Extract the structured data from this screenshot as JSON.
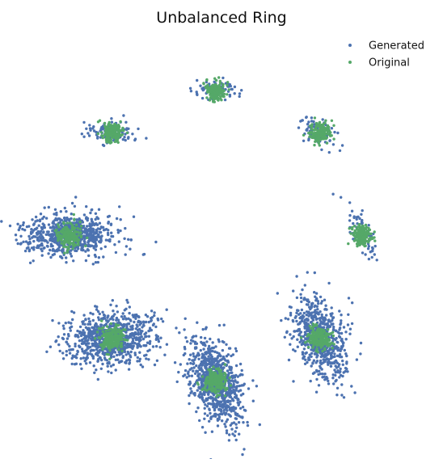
{
  "chart_data": {
    "type": "scatter",
    "title": "Unbalanced Ring",
    "axes_visible": false,
    "grid": false,
    "legend_position": "top-right",
    "xlim": [
      -1.35,
      1.45
    ],
    "ylim": [
      -1.45,
      1.4
    ],
    "series": [
      {
        "name": "Generated",
        "color": "#4c72b0",
        "clusters": [
          {
            "center": [
              0.0,
              1.0
            ],
            "spread": [
              0.08,
              0.035
            ],
            "corr": 0.0,
            "count": 90
          },
          {
            "center": [
              0.707,
              0.707
            ],
            "spread": [
              0.06,
              0.06
            ],
            "corr": -0.5,
            "count": 70
          },
          {
            "center": [
              1.0,
              0.0
            ],
            "spread": [
              0.05,
              0.08
            ],
            "corr": -0.6,
            "count": 70
          },
          {
            "center": [
              0.707,
              -0.707
            ],
            "spread": [
              0.09,
              0.14
            ],
            "corr": -0.35,
            "count": 650
          },
          {
            "center": [
              0.0,
              -1.0
            ],
            "spread": [
              0.09,
              0.15
            ],
            "corr": -0.35,
            "count": 850
          },
          {
            "center": [
              -0.707,
              -0.707
            ],
            "spread": [
              0.15,
              0.09
            ],
            "corr": 0.15,
            "count": 800
          },
          {
            "center": [
              -1.0,
              0.0
            ],
            "spread": [
              0.15,
              0.07
            ],
            "corr": 0.0,
            "count": 700
          },
          {
            "center": [
              -0.707,
              0.707
            ],
            "spread": [
              0.09,
              0.04
            ],
            "corr": 0.0,
            "count": 90
          }
        ]
      },
      {
        "name": "Original",
        "color": "#55a868",
        "clusters": [
          {
            "center": [
              0.0,
              1.0
            ],
            "spread": [
              0.035,
              0.035
            ],
            "corr": 0.0,
            "count": 160
          },
          {
            "center": [
              0.707,
              0.707
            ],
            "spread": [
              0.035,
              0.035
            ],
            "corr": 0.0,
            "count": 160
          },
          {
            "center": [
              1.0,
              0.0
            ],
            "spread": [
              0.035,
              0.035
            ],
            "corr": 0.0,
            "count": 160
          },
          {
            "center": [
              0.707,
              -0.707
            ],
            "spread": [
              0.04,
              0.04
            ],
            "corr": 0.0,
            "count": 220
          },
          {
            "center": [
              0.0,
              -1.0
            ],
            "spread": [
              0.04,
              0.04
            ],
            "corr": 0.0,
            "count": 220
          },
          {
            "center": [
              -0.707,
              -0.707
            ],
            "spread": [
              0.04,
              0.04
            ],
            "corr": 0.0,
            "count": 220
          },
          {
            "center": [
              -1.0,
              0.0
            ],
            "spread": [
              0.04,
              0.04
            ],
            "corr": 0.0,
            "count": 220
          },
          {
            "center": [
              -0.707,
              0.707
            ],
            "spread": [
              0.035,
              0.035
            ],
            "corr": 0.0,
            "count": 160
          }
        ]
      }
    ]
  }
}
